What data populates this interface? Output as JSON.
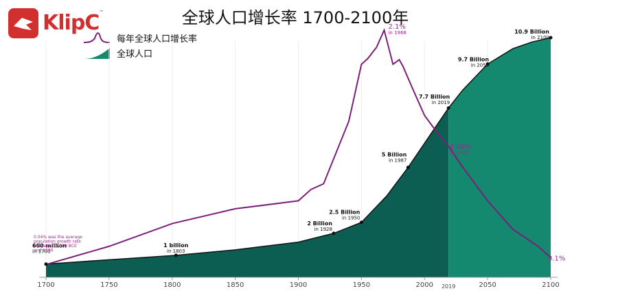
{
  "brand": {
    "logo_text": "KlipC",
    "tm": "™"
  },
  "colors": {
    "area_dark": "#0c5e52",
    "area_light": "#14896f",
    "rate_line": "#7a1f78",
    "rate_text": "#9a2a8e",
    "brand_red": "#d22f2f"
  },
  "chart_data": {
    "type": "area",
    "title": "全球人口增长率 1700-2100年",
    "xlabel": "",
    "ylabel": "",
    "xlim": [
      1700,
      2100
    ],
    "x_ticks": [
      1700,
      1750,
      1800,
      1850,
      1900,
      1950,
      2000,
      2050,
      2100
    ],
    "extra_tick": "2019",
    "projection_start": 2019,
    "legend": {
      "placement": "top-left"
    },
    "series": [
      {
        "name": "全球人口",
        "unit": "billion",
        "x": [
          1700,
          1750,
          1803,
          1850,
          1900,
          1928,
          1950,
          1970,
          1987,
          2000,
          2019,
          2030,
          2050,
          2070,
          2085,
          2100
        ],
        "values": [
          0.6,
          0.8,
          1.0,
          1.25,
          1.6,
          2.0,
          2.5,
          3.7,
          5.0,
          6.1,
          7.7,
          8.5,
          9.7,
          10.4,
          10.7,
          10.9
        ]
      },
      {
        "name": "每年全球人口增长率",
        "unit": "%",
        "x": [
          1700,
          1750,
          1800,
          1850,
          1900,
          1910,
          1920,
          1940,
          1950,
          1955,
          1962,
          1968,
          1975,
          1980,
          1983,
          1990,
          2000,
          2010,
          2019,
          2030,
          2050,
          2070,
          2090,
          2100
        ],
        "values": [
          0.04,
          0.2,
          0.4,
          0.53,
          0.6,
          0.7,
          0.75,
          1.3,
          1.8,
          1.85,
          1.95,
          2.1,
          1.8,
          1.84,
          1.78,
          1.6,
          1.35,
          1.2,
          1.08,
          0.9,
          0.6,
          0.35,
          0.2,
          0.1
        ]
      }
    ],
    "annotations": {
      "population": [
        {
          "year": 1700,
          "value": 0.6,
          "label": "600 million",
          "sub": "in 1700"
        },
        {
          "year": 1803,
          "value": 1.0,
          "label": "1 billion",
          "sub": "in 1803"
        },
        {
          "year": 1928,
          "value": 2.0,
          "label": "2 Billion",
          "sub": "in 1928"
        },
        {
          "year": 1950,
          "value": 2.5,
          "label": "2.5 Billion",
          "sub": "in 1950"
        },
        {
          "year": 1987,
          "value": 5.0,
          "label": "5 Billion",
          "sub": "in 1987"
        },
        {
          "year": 2019,
          "value": 7.7,
          "label": "7.7 Billion",
          "sub": "in 2019"
        },
        {
          "year": 2050,
          "value": 9.7,
          "label": "9.7 Billion",
          "sub": "in 2050"
        },
        {
          "year": 2100,
          "value": 10.9,
          "label": "10.9 Billion",
          "sub": "in 2100"
        }
      ],
      "rate": [
        {
          "year": 1968,
          "value": 2.1,
          "label": "2.1%",
          "sub": "in 1968"
        },
        {
          "year": 2019,
          "value": 1.08,
          "label": "1.08%",
          "sub": "in 2019"
        },
        {
          "year": 2100,
          "value": 0.1,
          "label": "0.1%",
          "sub": ""
        }
      ],
      "note_lines": [
        "0.04% was the average",
        "population growth rate",
        "between 10,000 BCE",
        "and 1700"
      ]
    }
  }
}
